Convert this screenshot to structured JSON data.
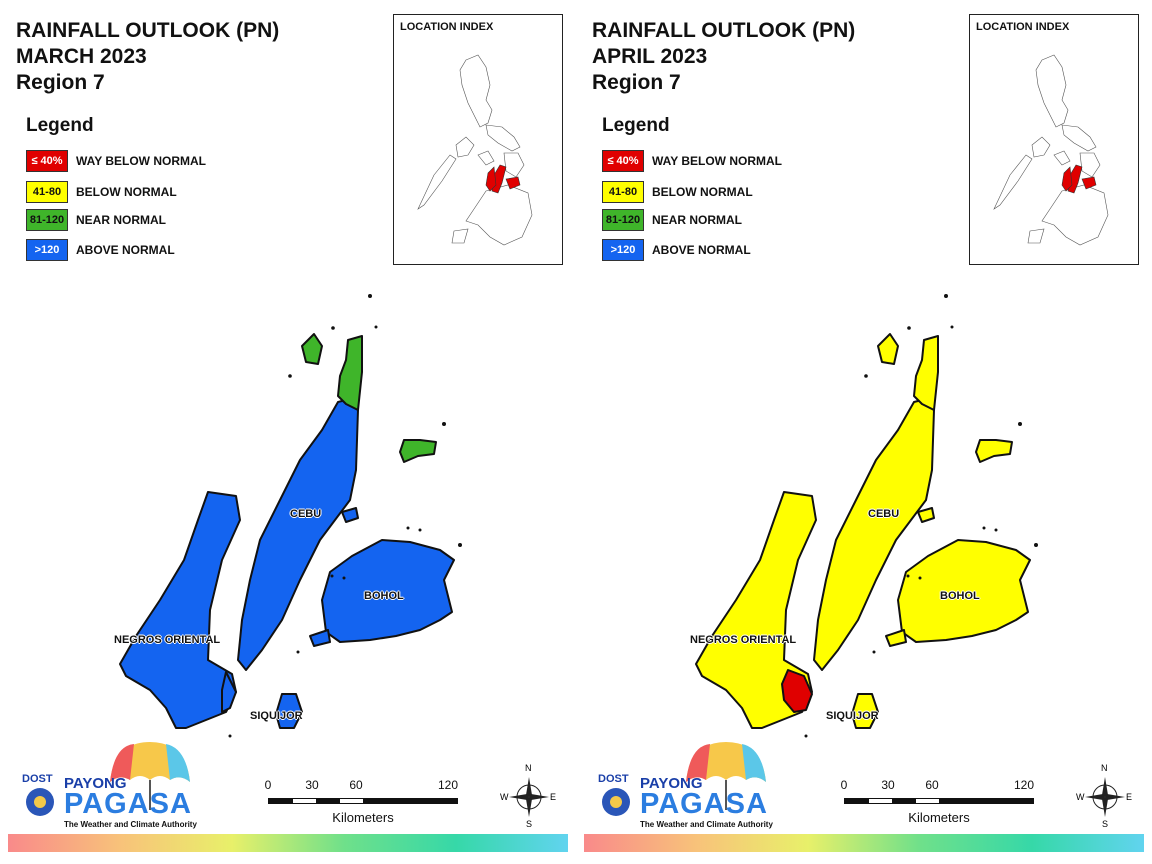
{
  "panels": [
    {
      "title_line1": "RAINFALL OUTLOOK (PN)",
      "title_line2": "MARCH 2023",
      "title_line3": "Region 7",
      "fills": {
        "cebu": "blue",
        "negros": "blue",
        "bohol": "blue",
        "siquijor": "blue",
        "north_tip": "green",
        "islets": "green",
        "negros_south": "blue"
      }
    },
    {
      "title_line1": "RAINFALL OUTLOOK (PN)",
      "title_line2": "APRIL 2023",
      "title_line3": "Region 7",
      "fills": {
        "cebu": "yellow",
        "negros": "yellow",
        "bohol": "yellow",
        "siquijor": "yellow",
        "north_tip": "yellow",
        "islets": "yellow",
        "negros_south": "red"
      }
    }
  ],
  "legend": {
    "title": "Legend",
    "items": [
      {
        "code": "≤ 40%",
        "label": "WAY BELOW NORMAL",
        "color": "#e00000",
        "text_color": "#ffffff"
      },
      {
        "code": "41-80",
        "label": "BELOW NORMAL",
        "color": "#ffff00",
        "text_color": "#111111"
      },
      {
        "code": "81-120",
        "label": "NEAR NORMAL",
        "color": "#3fb52a",
        "text_color": "#111111"
      },
      {
        "code": ">120",
        "label": "ABOVE NORMAL",
        "color": "#1464f0",
        "text_color": "#ffffff"
      }
    ]
  },
  "colors": {
    "blue": "#1464f0",
    "green": "#3fb52a",
    "yellow": "#ffff00",
    "red": "#e00000"
  },
  "location_index": {
    "title": "LOCATION INDEX"
  },
  "places": {
    "cebu": "CEBU",
    "bohol": "BOHOL",
    "negros": "NEGROS ORIENTAL",
    "siquijor": "SIQUIJOR"
  },
  "scale": {
    "ticks": [
      "0",
      "30",
      "60",
      "120"
    ],
    "unit": "Kilometers"
  },
  "compass": {
    "n": "N",
    "s": "S",
    "e": "E",
    "w": "W"
  },
  "logo": {
    "dost": "DOST",
    "payong": "PAYONG",
    "pagasa": "PAGASA",
    "tagline": "The Weather and Climate Authority"
  }
}
